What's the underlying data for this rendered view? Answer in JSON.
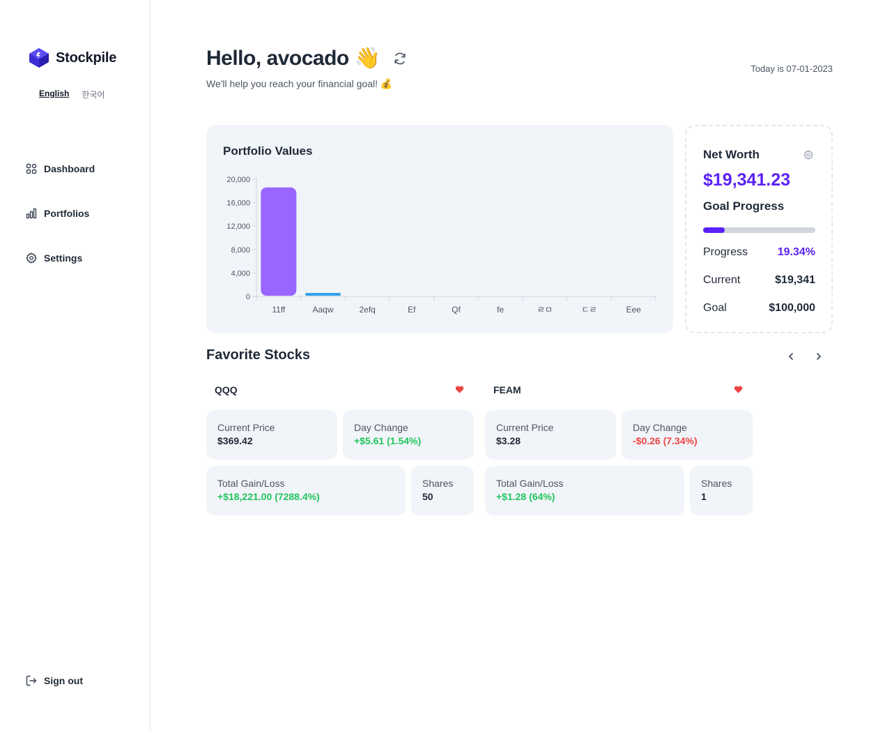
{
  "app": {
    "name": "Stockpile"
  },
  "languages": {
    "english": "English",
    "korean": "한국어",
    "selected": "English"
  },
  "nav": {
    "dashboard": "Dashboard",
    "portfolios": "Portfolios",
    "settings": "Settings",
    "sign_out": "Sign out"
  },
  "header": {
    "greeting": "Hello, avocado 👋",
    "subtitle": "We'll help you reach your financial goal! 💰",
    "today": "Today is 07-01-2023"
  },
  "portfolio": {
    "title": "Portfolio Values"
  },
  "chart_data": {
    "type": "bar",
    "title": "Portfolio Values",
    "categories": [
      "11ff",
      "Aaqw",
      "2efq",
      "Ef",
      "Qf",
      "fe",
      "ㄹㅁ",
      "ㄷㄹ",
      "Eee"
    ],
    "values": [
      18600,
      600,
      0,
      0,
      0,
      0,
      0,
      0,
      0
    ],
    "colors": [
      "#9966ff",
      "#36a2eb",
      "#9966ff",
      "#9966ff",
      "#9966ff",
      "#9966ff",
      "#9966ff",
      "#9966ff",
      "#9966ff"
    ],
    "yticks": [
      "0",
      "4,000",
      "8,000",
      "12,000",
      "16,000",
      "20,000"
    ],
    "ylim": [
      0,
      20000
    ],
    "grid": false,
    "xlabel": "",
    "ylabel": ""
  },
  "net_worth": {
    "title": "Net Worth",
    "value": "$19,341.23",
    "goal_title": "Goal Progress",
    "progress_fraction": 0.1934,
    "progress_label": "Progress",
    "progress_value": "19.34%",
    "current_label": "Current",
    "current_value": "$19,341",
    "goal_label": "Goal",
    "goal_value": "$100,000",
    "accent": "#5b21f6"
  },
  "favorites": {
    "title": "Favorite Stocks",
    "stocks": [
      {
        "symbol": "QQQ",
        "current_price_label": "Current Price",
        "current_price": "$369.42",
        "day_change_label": "Day Change",
        "day_change": "+$5.61 (1.54%)",
        "gain_label": "Total Gain/Loss",
        "gain": "+$18,221.00 (7288.4%)",
        "shares_label": "Shares",
        "shares": "50"
      },
      {
        "symbol": "FEAM",
        "current_price_label": "Current Price",
        "current_price": "$3.28",
        "day_change_label": "Day Change",
        "day_change": "-$0.26 (7.34%)",
        "gain_label": "Total Gain/Loss",
        "gain": "+$1.28 (64%)",
        "shares_label": "Shares",
        "shares": "1"
      }
    ]
  }
}
